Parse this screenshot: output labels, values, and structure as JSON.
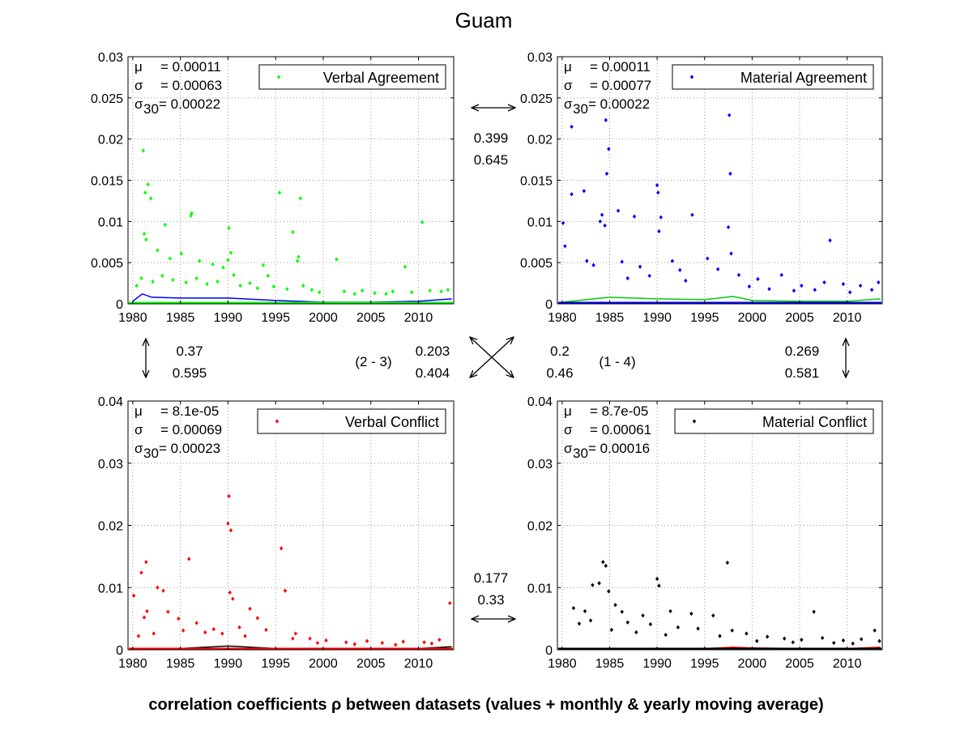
{
  "title": "Guam",
  "caption": "correlation coefficients ρ between datasets (values + monthly & yearly moving average)",
  "arrow_icons": [
    "double-arrow-horizontal-icon",
    "double-arrow-vertical-icon",
    "cross-arrows-icon"
  ],
  "correlations": {
    "top": {
      "a": "0.399",
      "b": "0.645"
    },
    "bottom": {
      "a": "0.177",
      "b": "0.33"
    },
    "left": {
      "a": "0.37",
      "b": "0.595"
    },
    "right": {
      "a": "0.269",
      "b": "0.581"
    },
    "diag_2_3": {
      "label": "(2 - 3)",
      "a": "0.203",
      "b": "0.404"
    },
    "diag_1_4": {
      "label": "(1 - 4)",
      "a": "0.2",
      "b": "0.46"
    }
  },
  "chart_data": [
    {
      "type": "scatter",
      "series_name": "Verbal Agreement",
      "color": "#00ff00",
      "mavg_color": "#0000ff",
      "stats": {
        "mu_label": "μ",
        "mu": "= 0.00011",
        "sigma_label": "σ",
        "sigma": "= 0.00063",
        "sigma30_label": "σ",
        "sigma30_sub": "30",
        "sigma30": "= 0.00022"
      },
      "xlim": [
        1979.5,
        2013.7
      ],
      "ylim": [
        0,
        0.03
      ],
      "xticks": [
        1980,
        1985,
        1990,
        1995,
        2000,
        2005,
        2010
      ],
      "yticks": [
        0,
        0.005,
        0.01,
        0.015,
        0.02,
        0.025,
        0.03
      ],
      "ytick_labels": [
        "0",
        "0.005",
        "0.01",
        "0.015",
        "0.02",
        "0.025",
        "0.03"
      ],
      "points": [
        [
          1981.1,
          0.0186
        ],
        [
          1981.3,
          0.0135
        ],
        [
          1981.6,
          0.0145
        ],
        [
          1981.9,
          0.0128
        ],
        [
          1981.2,
          0.0085
        ],
        [
          1981.4,
          0.0078
        ],
        [
          1983.4,
          0.0096
        ],
        [
          1986.2,
          0.011
        ],
        [
          1986.1,
          0.0107
        ],
        [
          1990.1,
          0.0092
        ],
        [
          1990.3,
          0.0062
        ],
        [
          1990.0,
          0.0053
        ],
        [
          1995.4,
          0.0135
        ],
        [
          1996.8,
          0.0087
        ],
        [
          1997.6,
          0.0128
        ],
        [
          1997.4,
          0.0057
        ],
        [
          1997.3,
          0.0052
        ],
        [
          2001.4,
          0.0054
        ],
        [
          2008.6,
          0.0045
        ],
        [
          2010.4,
          0.0099
        ],
        [
          1982.6,
          0.0065
        ],
        [
          1983.9,
          0.0055
        ],
        [
          1985.1,
          0.0061
        ],
        [
          1987.0,
          0.0052
        ],
        [
          1988.4,
          0.0048
        ],
        [
          1989.5,
          0.0044
        ],
        [
          1993.7,
          0.0047
        ],
        [
          1994.2,
          0.0034
        ],
        [
          1980.4,
          0.0022
        ],
        [
          1980.9,
          0.0031
        ],
        [
          1982.1,
          0.0027
        ],
        [
          1983.1,
          0.0034
        ],
        [
          1984.2,
          0.0029
        ],
        [
          1985.6,
          0.0026
        ],
        [
          1986.7,
          0.0031
        ],
        [
          1987.8,
          0.0024
        ],
        [
          1988.9,
          0.0027
        ],
        [
          1990.6,
          0.0035
        ],
        [
          1991.3,
          0.0022
        ],
        [
          1992.3,
          0.0025
        ],
        [
          1993.1,
          0.0019
        ],
        [
          1994.8,
          0.0021
        ],
        [
          1996.2,
          0.0018
        ],
        [
          1997.9,
          0.0022
        ],
        [
          1998.8,
          0.0017
        ],
        [
          1999.6,
          0.0014
        ],
        [
          2002.2,
          0.0015
        ],
        [
          2003.3,
          0.0012
        ],
        [
          2004.1,
          0.0016
        ],
        [
          2005.4,
          0.0013
        ],
        [
          2006.6,
          0.0012
        ],
        [
          2007.3,
          0.0015
        ],
        [
          2009.3,
          0.0014
        ],
        [
          2011.2,
          0.0016
        ],
        [
          2012.4,
          0.0015
        ],
        [
          2013.1,
          0.0017
        ]
      ],
      "mavg": [
        [
          1980,
          0.0003
        ],
        [
          1981,
          0.0012
        ],
        [
          1982,
          0.0008
        ],
        [
          1985,
          0.0007
        ],
        [
          1990,
          0.0007
        ],
        [
          1995,
          0.0004
        ],
        [
          2000,
          0.0002
        ],
        [
          2005,
          0.0002
        ],
        [
          2010,
          0.0003
        ],
        [
          2013.5,
          0.0006
        ]
      ]
    },
    {
      "type": "scatter",
      "series_name": "Material Agreement",
      "color": "#0000ff",
      "mavg_color": "#00cc00",
      "stats": {
        "mu_label": "μ",
        "mu": "= 0.00011",
        "sigma_label": "σ",
        "sigma": "= 0.00077",
        "sigma30_label": "σ",
        "sigma30_sub": "30",
        "sigma30": "= 0.00022"
      },
      "xlim": [
        1979.5,
        2013.7
      ],
      "ylim": [
        0,
        0.03
      ],
      "xticks": [
        1980,
        1985,
        1990,
        1995,
        2000,
        2005,
        2010
      ],
      "yticks": [
        0,
        0.005,
        0.01,
        0.015,
        0.02,
        0.025,
        0.03
      ],
      "ytick_labels": [
        "0",
        "0.005",
        "0.01",
        "0.015",
        "0.02",
        "0.025",
        "0.03"
      ],
      "points": [
        [
          1981.0,
          0.0215
        ],
        [
          1981.0,
          0.0133
        ],
        [
          1980.1,
          0.0098
        ],
        [
          1980.3,
          0.007
        ],
        [
          1982.3,
          0.0137
        ],
        [
          1984.6,
          0.0223
        ],
        [
          1984.9,
          0.0188
        ],
        [
          1984.7,
          0.0158
        ],
        [
          1984.2,
          0.0108
        ],
        [
          1984.0,
          0.01
        ],
        [
          1984.5,
          0.0095
        ],
        [
          1985.9,
          0.0113
        ],
        [
          1987.6,
          0.0106
        ],
        [
          1990.0,
          0.0144
        ],
        [
          1990.1,
          0.0135
        ],
        [
          1990.4,
          0.0105
        ],
        [
          1990.2,
          0.0088
        ],
        [
          1993.7,
          0.0108
        ],
        [
          1997.6,
          0.0229
        ],
        [
          1997.7,
          0.0158
        ],
        [
          1997.5,
          0.0093
        ],
        [
          1997.8,
          0.0061
        ],
        [
          2008.2,
          0.0077
        ],
        [
          1982.6,
          0.0052
        ],
        [
          1983.3,
          0.0047
        ],
        [
          1986.3,
          0.0051
        ],
        [
          1988.2,
          0.0045
        ],
        [
          1991.6,
          0.0052
        ],
        [
          1992.4,
          0.0041
        ],
        [
          1995.3,
          0.0055
        ],
        [
          1996.4,
          0.0042
        ],
        [
          1998.6,
          0.0035
        ],
        [
          2000.6,
          0.003
        ],
        [
          2003.1,
          0.0035
        ],
        [
          2005.2,
          0.0022
        ],
        [
          2007.6,
          0.0026
        ],
        [
          2009.6,
          0.0024
        ],
        [
          2011.4,
          0.0022
        ],
        [
          2013.3,
          0.0026
        ],
        [
          1986.9,
          0.0031
        ],
        [
          1989.2,
          0.0034
        ],
        [
          1993.0,
          0.0028
        ],
        [
          1999.7,
          0.0021
        ],
        [
          2001.8,
          0.0018
        ],
        [
          2004.4,
          0.0016
        ],
        [
          2006.6,
          0.0017
        ],
        [
          2010.3,
          0.0014
        ],
        [
          2012.6,
          0.0017
        ]
      ],
      "mavg": [
        [
          1980,
          0.0002
        ],
        [
          1985,
          0.0008
        ],
        [
          1990,
          0.0006
        ],
        [
          1995,
          0.0005
        ],
        [
          1998,
          0.0009
        ],
        [
          2000,
          0.0004
        ],
        [
          2005,
          0.0003
        ],
        [
          2010,
          0.0003
        ],
        [
          2013.5,
          0.0006
        ]
      ]
    },
    {
      "type": "scatter",
      "series_name": "Verbal Conflict",
      "color": "#ff0000",
      "mavg_color": "#000000",
      "stats": {
        "mu_label": "μ",
        "mu": "= 8.1e-05",
        "sigma_label": "σ",
        "sigma": "= 0.00069",
        "sigma30_label": "σ",
        "sigma30_sub": "30",
        "sigma30": "= 0.00023"
      },
      "xlim": [
        1979.5,
        2013.7
      ],
      "ylim": [
        0,
        0.04
      ],
      "xticks": [
        1980,
        1985,
        1990,
        1995,
        2000,
        2005,
        2010
      ],
      "yticks": [
        0,
        0.01,
        0.02,
        0.03,
        0.04
      ],
      "ytick_labels": [
        "0",
        "0.01",
        "0.02",
        "0.03",
        "0.04"
      ],
      "points": [
        [
          1980.1,
          0.0087
        ],
        [
          1980.9,
          0.0124
        ],
        [
          1981.4,
          0.0141
        ],
        [
          1981.5,
          0.0062
        ],
        [
          1981.2,
          0.0052
        ],
        [
          1982.6,
          0.01
        ],
        [
          1983.2,
          0.0095
        ],
        [
          1985.9,
          0.0146
        ],
        [
          1990.1,
          0.0247
        ],
        [
          1990.0,
          0.0203
        ],
        [
          1990.3,
          0.0192
        ],
        [
          1990.2,
          0.0092
        ],
        [
          1990.5,
          0.0082
        ],
        [
          1995.6,
          0.0163
        ],
        [
          1996.0,
          0.0095
        ],
        [
          1992.3,
          0.0066
        ],
        [
          1993.1,
          0.0051
        ],
        [
          2013.3,
          0.0075
        ],
        [
          1983.7,
          0.0061
        ],
        [
          1984.8,
          0.005
        ],
        [
          1986.7,
          0.0043
        ],
        [
          1988.5,
          0.0033
        ],
        [
          1989.4,
          0.0026
        ],
        [
          1991.2,
          0.0036
        ],
        [
          1994.0,
          0.0032
        ],
        [
          1997.1,
          0.0026
        ],
        [
          1998.6,
          0.0018
        ],
        [
          2000.3,
          0.0015
        ],
        [
          2002.4,
          0.0012
        ],
        [
          2004.6,
          0.0014
        ],
        [
          2006.2,
          0.0011
        ],
        [
          2008.4,
          0.0013
        ],
        [
          2010.6,
          0.0012
        ],
        [
          2012.2,
          0.0016
        ],
        [
          1980.6,
          0.0022
        ],
        [
          1982.2,
          0.0026
        ],
        [
          1985.3,
          0.0031
        ],
        [
          1987.6,
          0.0028
        ],
        [
          1991.8,
          0.0022
        ],
        [
          1996.8,
          0.0018
        ],
        [
          1999.4,
          0.0011
        ],
        [
          2003.3,
          0.0009
        ],
        [
          2007.6,
          0.0008
        ],
        [
          2011.4,
          0.001
        ]
      ],
      "mavg": [
        [
          1980,
          0.0002
        ],
        [
          1985,
          0.0002
        ],
        [
          1990,
          0.0006
        ],
        [
          1995,
          0.0002
        ],
        [
          2000,
          0.0002
        ],
        [
          2005,
          0.0002
        ],
        [
          2010,
          0.0002
        ],
        [
          2013.5,
          0.0005
        ]
      ]
    },
    {
      "type": "scatter",
      "series_name": "Material Conflict",
      "color": "#000000",
      "mavg_color": "#ff0000",
      "stats": {
        "mu_label": "μ",
        "mu": "= 8.7e-05",
        "sigma_label": "σ",
        "sigma": "= 0.00061",
        "sigma30_label": "σ",
        "sigma30_sub": "30",
        "sigma30": "= 0.00016"
      },
      "xlim": [
        1979.5,
        2013.7
      ],
      "ylim": [
        0,
        0.04
      ],
      "xticks": [
        1980,
        1985,
        1990,
        1995,
        2000,
        2005,
        2010
      ],
      "yticks": [
        0,
        0.01,
        0.02,
        0.03,
        0.04
      ],
      "ytick_labels": [
        "0",
        "0.01",
        "0.02",
        "0.03",
        "0.04"
      ],
      "points": [
        [
          1984.3,
          0.0141
        ],
        [
          1984.6,
          0.0135
        ],
        [
          1983.9,
          0.0107
        ],
        [
          1983.2,
          0.0104
        ],
        [
          1984.9,
          0.0094
        ],
        [
          1990.0,
          0.0114
        ],
        [
          1990.2,
          0.0103
        ],
        [
          1997.4,
          0.014
        ],
        [
          1981.2,
          0.0067
        ],
        [
          1982.4,
          0.0062
        ],
        [
          1985.6,
          0.0072
        ],
        [
          1986.3,
          0.0061
        ],
        [
          1988.5,
          0.0055
        ],
        [
          1991.4,
          0.0062
        ],
        [
          1993.6,
          0.0058
        ],
        [
          1995.9,
          0.0055
        ],
        [
          2006.5,
          0.0061
        ],
        [
          1981.8,
          0.0042
        ],
        [
          1983.0,
          0.0047
        ],
        [
          1986.9,
          0.0044
        ],
        [
          1989.3,
          0.0041
        ],
        [
          1992.2,
          0.0036
        ],
        [
          1994.3,
          0.0034
        ],
        [
          1997.9,
          0.0031
        ],
        [
          1999.4,
          0.0026
        ],
        [
          2001.6,
          0.0021
        ],
        [
          2003.4,
          0.0018
        ],
        [
          2005.2,
          0.0016
        ],
        [
          2007.4,
          0.0019
        ],
        [
          2009.6,
          0.0015
        ],
        [
          2011.5,
          0.0017
        ],
        [
          2012.9,
          0.0031
        ],
        [
          1985.2,
          0.0032
        ],
        [
          1987.8,
          0.0028
        ],
        [
          1990.9,
          0.0024
        ],
        [
          1996.6,
          0.0022
        ],
        [
          2000.5,
          0.0014
        ],
        [
          2004.3,
          0.0012
        ],
        [
          2008.6,
          0.0011
        ],
        [
          2010.6,
          0.001
        ],
        [
          2013.4,
          0.0014
        ]
      ],
      "mavg": [
        [
          1980,
          0.0001
        ],
        [
          1985,
          0.0002
        ],
        [
          1990,
          0.0002
        ],
        [
          1995,
          0.0002
        ],
        [
          1998,
          0.0004
        ],
        [
          2000,
          0.0003
        ],
        [
          2005,
          0.0002
        ],
        [
          2010,
          0.0002
        ],
        [
          2013.5,
          0.0004
        ]
      ]
    }
  ]
}
